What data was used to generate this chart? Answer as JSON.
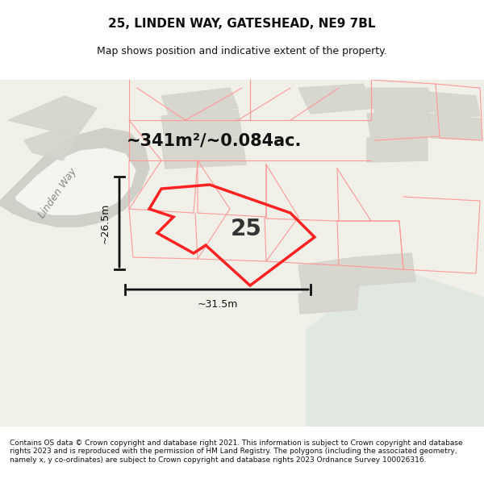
{
  "title": "25, LINDEN WAY, GATESHEAD, NE9 7BL",
  "subtitle": "Map shows position and indicative extent of the property.",
  "area_text": "~341m²/~0.084ac.",
  "property_number": "25",
  "dim_width": "~31.5m",
  "dim_height": "~26.5m",
  "footnote": "Contains OS data © Crown copyright and database right 2021. This information is subject to Crown copyright and database rights 2023 and is reproduced with the permission of HM Land Registry. The polygons (including the associated geometry, namely x, y co-ordinates) are subject to Crown copyright and database rights 2023 Ordnance Survey 100026316.",
  "bg_color": "#f0f0e8",
  "map_bg": "#e8e8e0",
  "road_color": "#ffffff",
  "plot_color": "#d8d8d8",
  "boundary_color": "#ff2222",
  "dim_color": "#111111",
  "title_color": "#111111",
  "pink_line_color": "#ff9999",
  "street_label": "Linden Way",
  "footer_bg": "#ffffff"
}
